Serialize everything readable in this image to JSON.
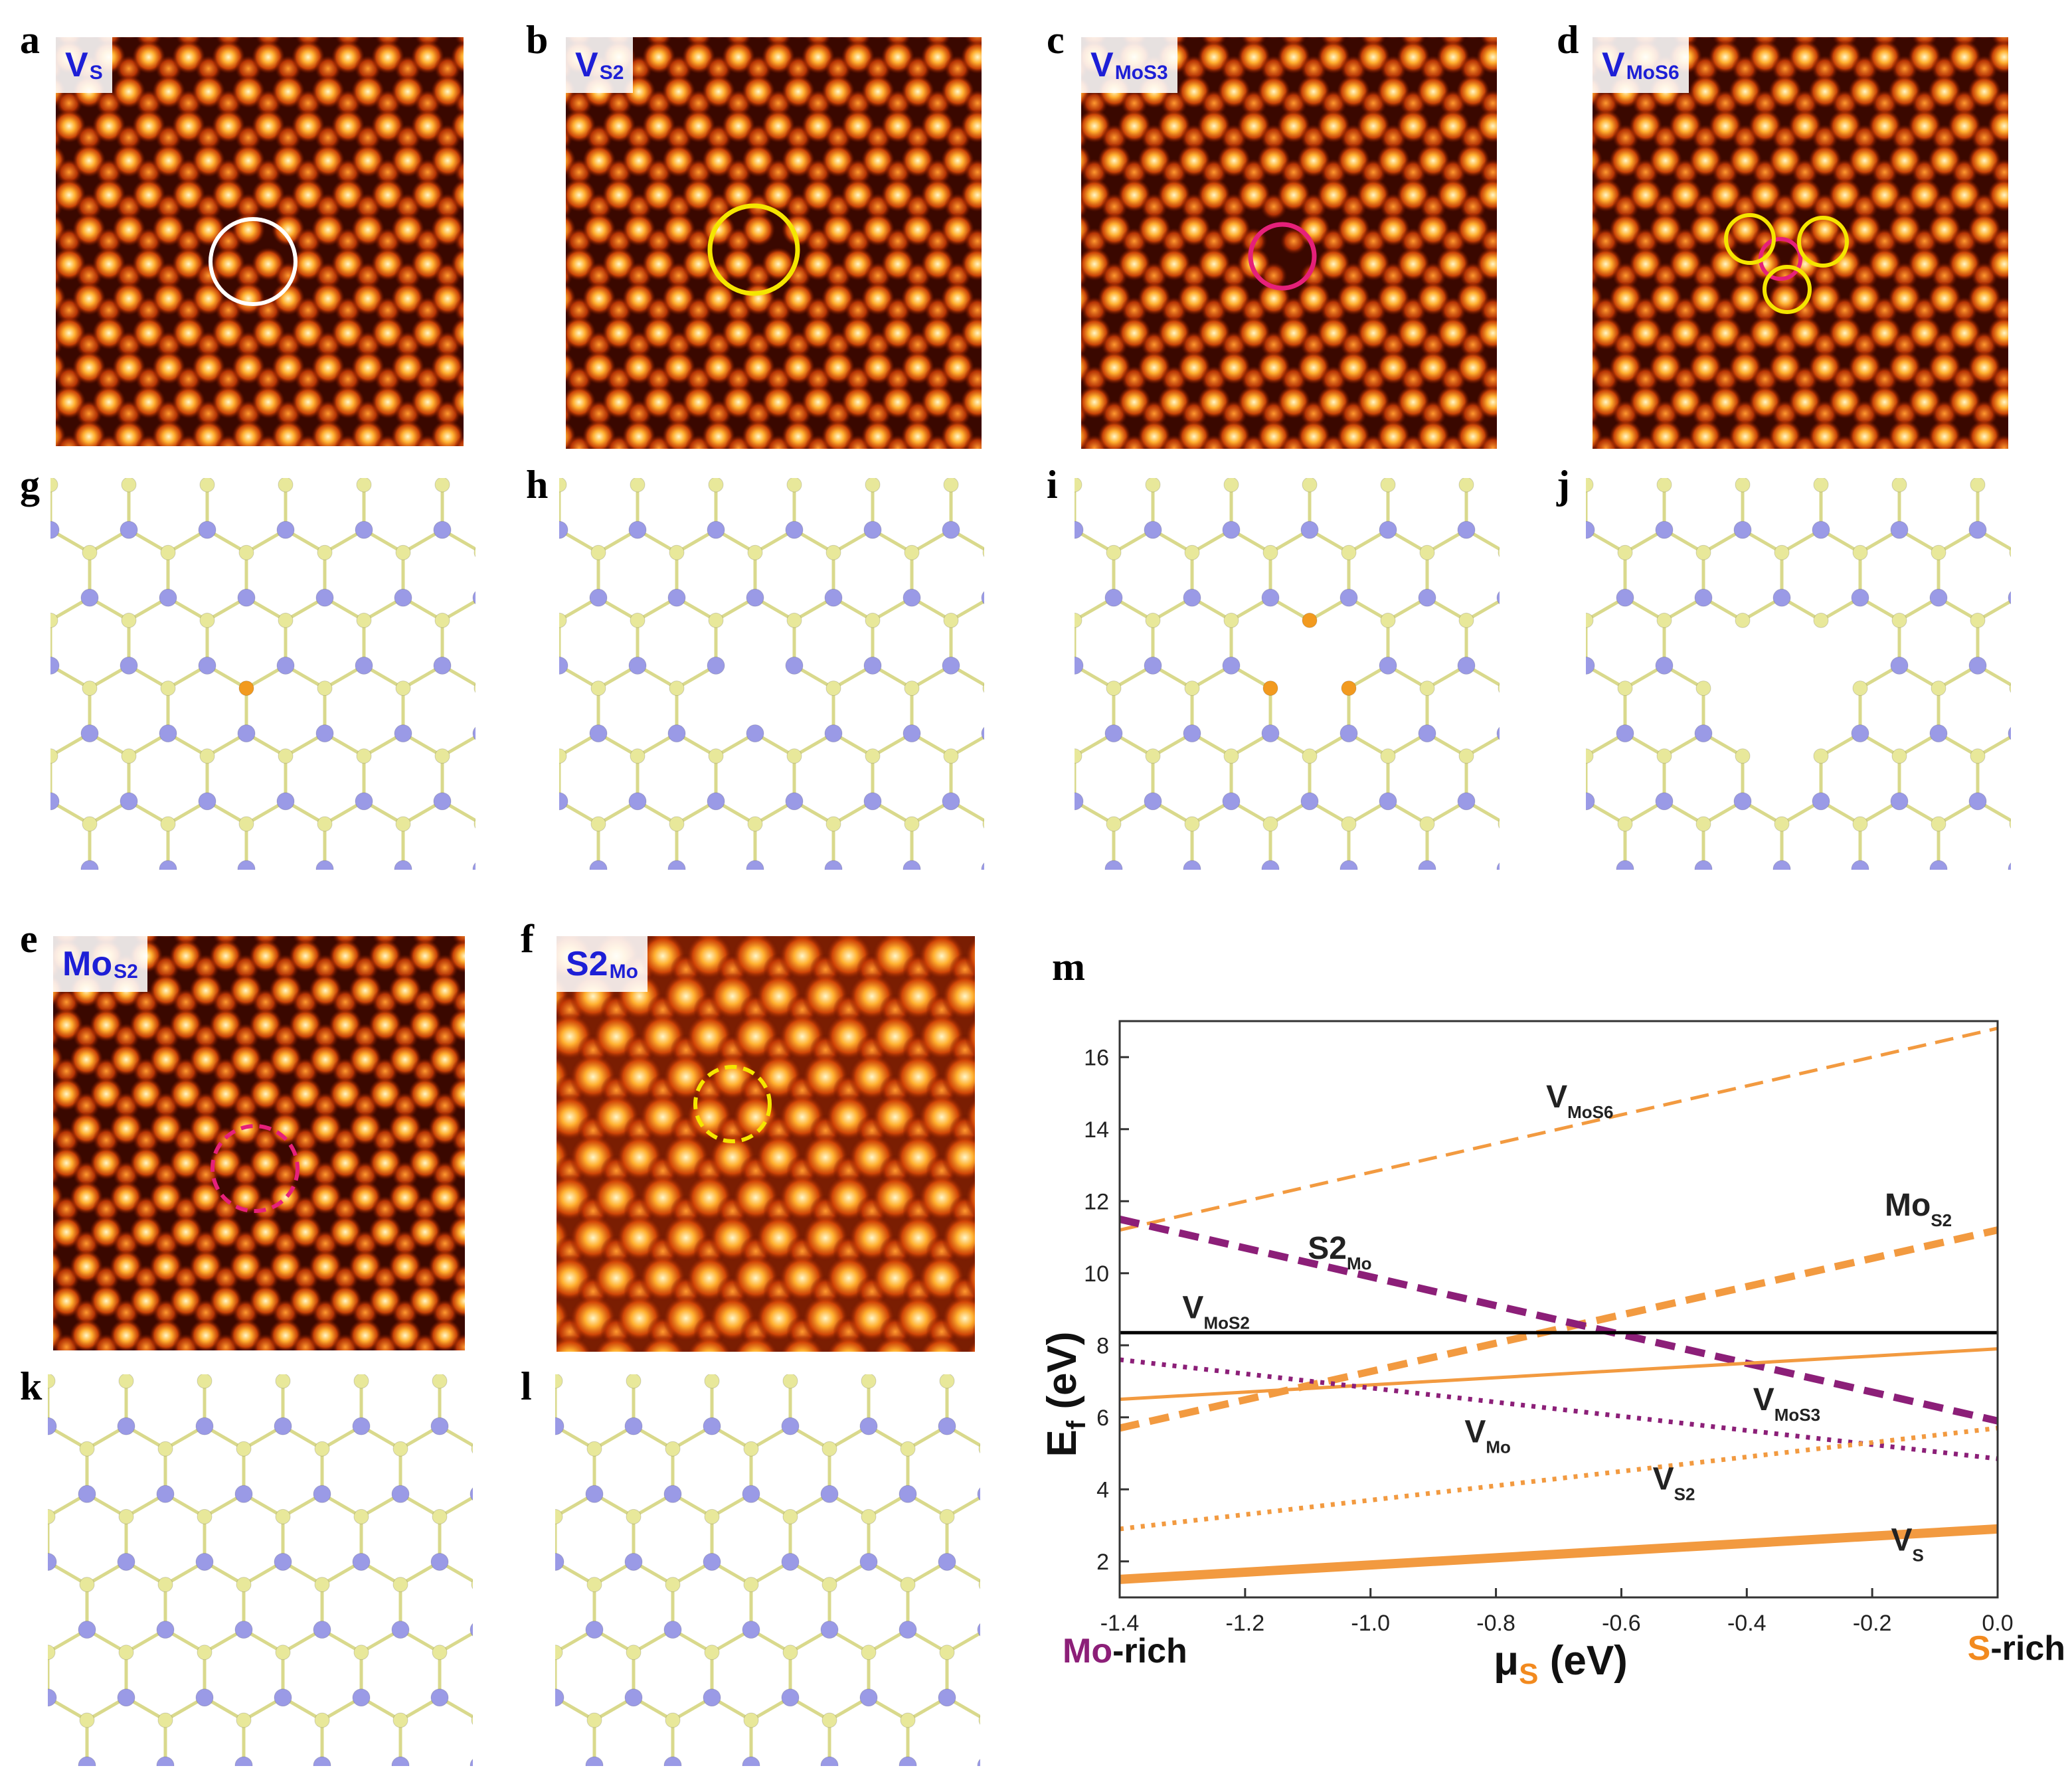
{
  "panels": {
    "a": {
      "letter": "a",
      "tag_main": "V",
      "tag_sub": "S",
      "marker": "white-circle"
    },
    "b": {
      "letter": "b",
      "tag_main": "V",
      "tag_sub": "S2",
      "marker": "yellow-circle"
    },
    "c": {
      "letter": "c",
      "tag_main": "V",
      "tag_sub": "MoS3",
      "marker": "magenta-circle"
    },
    "d": {
      "letter": "d",
      "tag_main": "V",
      "tag_sub": "MoS6",
      "marker": "three-yellow-circles"
    },
    "e": {
      "letter": "e",
      "tag_main": "Mo",
      "tag_sub": "S2",
      "marker": "magenta-dashed-circle"
    },
    "f": {
      "letter": "f",
      "tag_main": "S2",
      "tag_sub": "Mo",
      "marker": "yellow-dashed-circle"
    },
    "g": {
      "letter": "g"
    },
    "h": {
      "letter": "h"
    },
    "i": {
      "letter": "i"
    },
    "j": {
      "letter": "j"
    },
    "k": {
      "letter": "k"
    },
    "l": {
      "letter": "l"
    },
    "m": {
      "letter": "m"
    }
  },
  "colors": {
    "mo_atom": "#9a9ae6",
    "s_atom": "#e8e89a",
    "bond": "#d9d98c",
    "defect_s": "#f29a1f",
    "yellow_marker": "#f5e600",
    "magenta_marker": "#e6207a"
  },
  "chart_data": {
    "type": "line",
    "xlabel": "μS (eV)",
    "xlabel_main": "μ",
    "xlabel_sub": "S",
    "xlabel_unit": " (eV)",
    "ylabel": "Ef (eV)",
    "ylabel_main": "E",
    "ylabel_sub": "f",
    "ylabel_unit": " (eV)",
    "xlim": [
      -1.4,
      0.0
    ],
    "ylim": [
      1.0,
      17.0
    ],
    "xticks": [
      "-1.4",
      "-1.2",
      "-1.0",
      "-0.8",
      "-0.6",
      "-0.4",
      "-0.2",
      "0.0"
    ],
    "yticks": [
      "2",
      "4",
      "6",
      "8",
      "10",
      "12",
      "14",
      "16"
    ],
    "left_note_main": "Mo",
    "left_note_rest": "-rich",
    "right_note_main": "S",
    "right_note_rest": "-rich",
    "series": [
      {
        "name": "V_MoS6",
        "label_main": "V",
        "label_sub": "MoS6",
        "x": [
          -1.4,
          0.0
        ],
        "y": [
          11.2,
          16.8
        ],
        "color": "#f29a40",
        "style": "dashed-thin"
      },
      {
        "name": "Mo_S2",
        "label_main": "Mo",
        "label_sub": "S2",
        "x": [
          -1.4,
          0.0
        ],
        "y": [
          5.7,
          11.2
        ],
        "color": "#f29a40",
        "style": "dashed-thick"
      },
      {
        "name": "S2_Mo",
        "label_main": "S2",
        "label_sub": "Mo",
        "x": [
          -1.4,
          0.0
        ],
        "y": [
          11.5,
          5.9
        ],
        "color": "#8c1f78",
        "style": "dashed-thick"
      },
      {
        "name": "V_MoS2",
        "label_main": "V",
        "label_sub": "MoS2",
        "x": [
          -1.4,
          0.0
        ],
        "y": [
          8.35,
          8.35
        ],
        "color": "#000000",
        "style": "solid"
      },
      {
        "name": "V_MoS3",
        "label_main": "V",
        "label_sub": "MoS3",
        "x": [
          -1.4,
          0.0
        ],
        "y": [
          6.5,
          7.9
        ],
        "color": "#f29a40",
        "style": "solid"
      },
      {
        "name": "V_Mo",
        "label_main": "V",
        "label_sub": "Mo",
        "x": [
          -1.4,
          0.0
        ],
        "y": [
          7.6,
          4.85
        ],
        "color": "#8c1f78",
        "style": "dotted"
      },
      {
        "name": "V_S2",
        "label_main": "V",
        "label_sub": "S2",
        "x": [
          -1.4,
          0.0
        ],
        "y": [
          2.9,
          5.7
        ],
        "color": "#f29a40",
        "style": "dotted"
      },
      {
        "name": "V_S",
        "label_main": "V",
        "label_sub": "S",
        "x": [
          -1.4,
          0.0
        ],
        "y": [
          1.5,
          2.9
        ],
        "color": "#f29a40",
        "style": "solid-thick"
      }
    ]
  }
}
